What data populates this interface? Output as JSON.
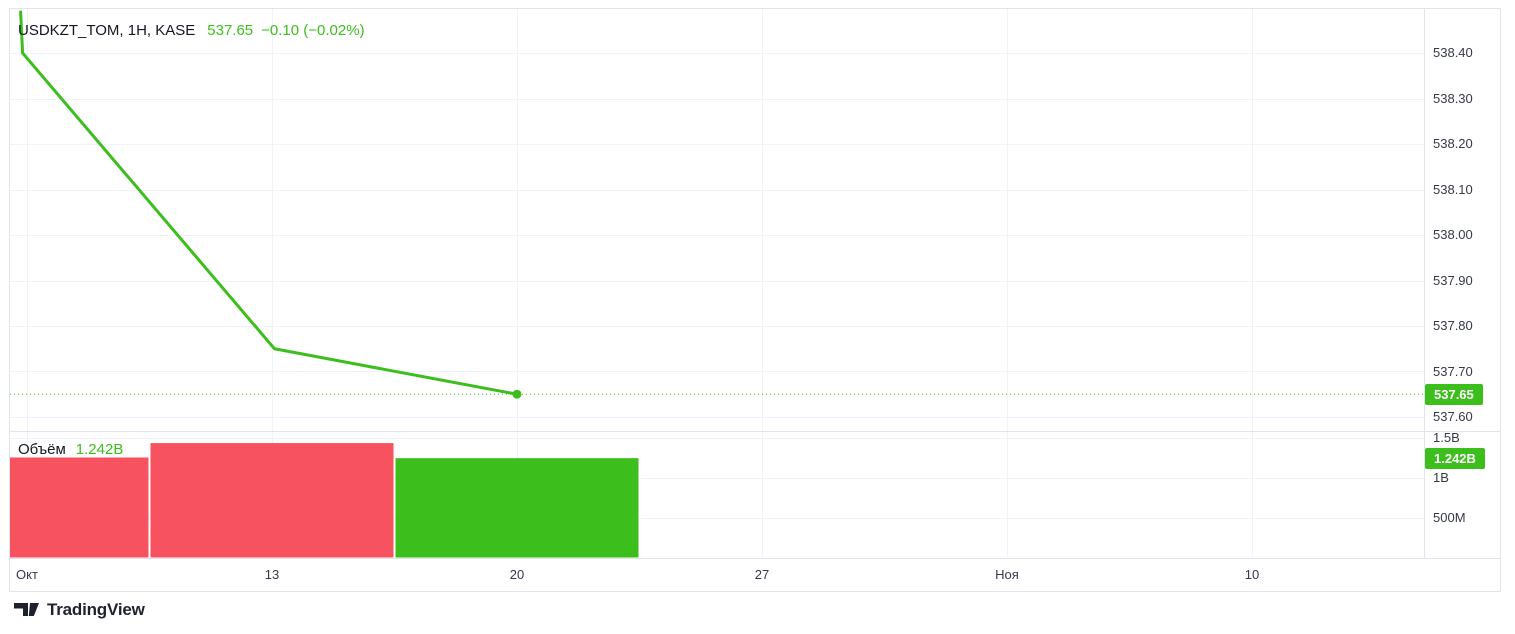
{
  "colors": {
    "up_green": "#3CBE1C",
    "down_red": "#F7525F",
    "badge_text": "#FFFFFF",
    "text_dark": "#131722",
    "axis_text": "#363A45",
    "grid": "#F0F3FA",
    "border": "#E1E4EC",
    "logo": "#1E222D",
    "background": "#FFFFFF"
  },
  "header": {
    "symbol": "USDKZT_TOM, 1H, KASE",
    "price": "537.65",
    "change": "−0.10 (−0.02%)"
  },
  "volume_legend": {
    "label": "Объём",
    "value": "1.242B"
  },
  "price_axis": {
    "ticks": [
      "538.40",
      "538.30",
      "538.20",
      "538.10",
      "538.00",
      "537.90",
      "537.80",
      "537.70",
      "537.60"
    ],
    "badge": "537.65"
  },
  "volume_axis": {
    "ticks": [
      {
        "label": "1.5B",
        "value_b": 1.5
      },
      {
        "label": "1B",
        "value_b": 1.0
      },
      {
        "label": "500M",
        "value_b": 0.5
      }
    ],
    "badge": "1.242B"
  },
  "time_axis": {
    "labels": [
      "Окт",
      "13",
      "20",
      "27",
      "Ноя",
      "10"
    ]
  },
  "footer": {
    "brand": "TradingView"
  },
  "chart_data": {
    "type": "line",
    "title": "USDKZT_TOM, 1H, KASE",
    "symbol": "USDKZT_TOM",
    "interval": "1H",
    "exchange": "KASE",
    "last_price": 537.65,
    "change": -0.1,
    "change_pct": "-0.02%",
    "ylim": [
      537.55,
      538.5
    ],
    "price_tick_step": 0.1,
    "x_ticks": [
      "Окт",
      "13",
      "20",
      "27",
      "Ноя",
      "10"
    ],
    "grid": true,
    "legend_position": "top-left",
    "line_points": [
      {
        "t": -0.026,
        "price": 538.49
      },
      {
        "t": -0.018,
        "price": 538.4
      },
      {
        "t": 1.01,
        "price": 537.75
      },
      {
        "t": 2.0,
        "price": 537.65
      }
    ],
    "last_price_line": {
      "price": 537.65,
      "style": "dotted"
    },
    "volume": {
      "unit": "B",
      "ylim_b": [
        0,
        1.65
      ],
      "current": "1.242B",
      "bars": [
        {
          "t": 0,
          "label": "Окт",
          "value_b": 1.25,
          "direction": "down"
        },
        {
          "t": 1,
          "label": "13",
          "value_b": 1.43,
          "direction": "down"
        },
        {
          "t": 2,
          "label": "20",
          "value_b": 1.242,
          "direction": "up"
        }
      ]
    }
  }
}
